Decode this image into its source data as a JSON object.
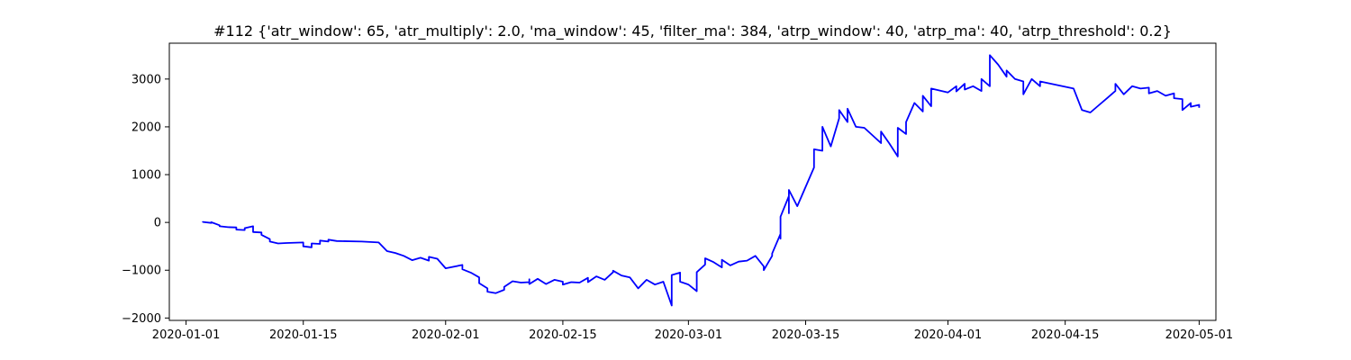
{
  "chart_data": {
    "type": "line",
    "title": "#112 {'atr_window': 65, 'atr_multiply': 2.0, 'ma_window': 45, 'filter_ma': 384, 'atrp_window': 40, 'atrp_ma': 40, 'atrp_threshold': 0.2}",
    "xlabel": "",
    "ylabel": "",
    "xlim": [
      "2019-12-30",
      "2020-05-03"
    ],
    "ylim": [
      -2050,
      3750
    ],
    "grid": false,
    "x_ticks": [
      "2020-01-01",
      "2020-01-15",
      "2020-02-01",
      "2020-02-15",
      "2020-03-01",
      "2020-03-15",
      "2020-04-01",
      "2020-04-15",
      "2020-05-01"
    ],
    "y_ticks": [
      -2000,
      -1000,
      0,
      1000,
      2000,
      3000
    ],
    "series": [
      {
        "color": "#0000ff",
        "points": [
          [
            "2020-01-03",
            0
          ],
          [
            "2020-01-03",
            10
          ],
          [
            "2020-01-04",
            -10
          ],
          [
            "2020-01-04",
            5
          ],
          [
            "2020-01-05",
            -60
          ],
          [
            "2020-01-05",
            -80
          ],
          [
            "2020-01-06",
            -100
          ],
          [
            "2020-01-07",
            -105
          ],
          [
            "2020-01-07",
            -150
          ],
          [
            "2020-01-08",
            -160
          ],
          [
            "2020-01-08",
            -120
          ],
          [
            "2020-01-09",
            -80
          ],
          [
            "2020-01-09",
            -200
          ],
          [
            "2020-01-10",
            -210
          ],
          [
            "2020-01-10",
            -260
          ],
          [
            "2020-01-11",
            -350
          ],
          [
            "2020-01-11",
            -400
          ],
          [
            "2020-01-12",
            -440
          ],
          [
            "2020-01-13",
            -430
          ],
          [
            "2020-01-15",
            -420
          ],
          [
            "2020-01-15",
            -500
          ],
          [
            "2020-01-16",
            -520
          ],
          [
            "2020-01-16",
            -440
          ],
          [
            "2020-01-17",
            -450
          ],
          [
            "2020-01-17",
            -380
          ],
          [
            "2020-01-18",
            -400
          ],
          [
            "2020-01-18",
            -360
          ],
          [
            "2020-01-19",
            -390
          ],
          [
            "2020-01-22",
            -400
          ],
          [
            "2020-01-24",
            -420
          ],
          [
            "2020-01-25",
            -600
          ],
          [
            "2020-01-26",
            -640
          ],
          [
            "2020-01-27",
            -700
          ],
          [
            "2020-01-28",
            -790
          ],
          [
            "2020-01-29",
            -740
          ],
          [
            "2020-01-30",
            -800
          ],
          [
            "2020-01-30",
            -720
          ],
          [
            "2020-01-31",
            -760
          ],
          [
            "2020-02-01",
            -960
          ],
          [
            "2020-02-03",
            -890
          ],
          [
            "2020-02-03",
            -980
          ],
          [
            "2020-02-04",
            -1050
          ],
          [
            "2020-02-05",
            -1150
          ],
          [
            "2020-02-05",
            -1270
          ],
          [
            "2020-02-06",
            -1380
          ],
          [
            "2020-02-06",
            -1450
          ],
          [
            "2020-02-07",
            -1480
          ],
          [
            "2020-02-08",
            -1410
          ],
          [
            "2020-02-08",
            -1350
          ],
          [
            "2020-02-09",
            -1230
          ],
          [
            "2020-02-10",
            -1260
          ],
          [
            "2020-02-11",
            -1250
          ],
          [
            "2020-02-11",
            -1190
          ],
          [
            "2020-02-11",
            -1290
          ],
          [
            "2020-02-12",
            -1180
          ],
          [
            "2020-02-13",
            -1290
          ],
          [
            "2020-02-14",
            -1200
          ],
          [
            "2020-02-15",
            -1240
          ],
          [
            "2020-02-15",
            -1300
          ],
          [
            "2020-02-16",
            -1250
          ],
          [
            "2020-02-17",
            -1260
          ],
          [
            "2020-02-18",
            -1160
          ],
          [
            "2020-02-18",
            -1250
          ],
          [
            "2020-02-19",
            -1130
          ],
          [
            "2020-02-20",
            -1200
          ],
          [
            "2020-02-21",
            -1040
          ],
          [
            "2020-02-21",
            -1010
          ],
          [
            "2020-02-22",
            -1110
          ],
          [
            "2020-02-23",
            -1150
          ],
          [
            "2020-02-24",
            -1380
          ],
          [
            "2020-02-25",
            -1200
          ],
          [
            "2020-02-26",
            -1300
          ],
          [
            "2020-02-27",
            -1240
          ],
          [
            "2020-02-28",
            -1740
          ],
          [
            "2020-02-28",
            -1100
          ],
          [
            "2020-02-29",
            -1050
          ],
          [
            "2020-02-29",
            -1240
          ],
          [
            "2020-03-01",
            -1300
          ],
          [
            "2020-03-02",
            -1440
          ],
          [
            "2020-03-02",
            -1040
          ],
          [
            "2020-03-03",
            -880
          ],
          [
            "2020-03-03",
            -750
          ],
          [
            "2020-03-04",
            -830
          ],
          [
            "2020-03-05",
            -940
          ],
          [
            "2020-03-05",
            -780
          ],
          [
            "2020-03-06",
            -900
          ],
          [
            "2020-03-07",
            -820
          ],
          [
            "2020-03-08",
            -800
          ],
          [
            "2020-03-09",
            -700
          ],
          [
            "2020-03-10",
            -920
          ],
          [
            "2020-03-10",
            -1000
          ],
          [
            "2020-03-11",
            -700
          ],
          [
            "2020-03-11",
            -650
          ],
          [
            "2020-03-12",
            -240
          ],
          [
            "2020-03-12",
            -340
          ],
          [
            "2020-03-12",
            120
          ],
          [
            "2020-03-13",
            550
          ],
          [
            "2020-03-13",
            190
          ],
          [
            "2020-03-13",
            680
          ],
          [
            "2020-03-14",
            340
          ],
          [
            "2020-03-16",
            1150
          ],
          [
            "2020-03-16",
            1530
          ],
          [
            "2020-03-17",
            1500
          ],
          [
            "2020-03-17",
            2000
          ],
          [
            "2020-03-18",
            1590
          ],
          [
            "2020-03-19",
            2180
          ],
          [
            "2020-03-19",
            2350
          ],
          [
            "2020-03-20",
            2100
          ],
          [
            "2020-03-20",
            2380
          ],
          [
            "2020-03-21",
            2000
          ],
          [
            "2020-03-22",
            1980
          ],
          [
            "2020-03-24",
            1660
          ],
          [
            "2020-03-24",
            1900
          ],
          [
            "2020-03-25",
            1650
          ],
          [
            "2020-03-26",
            1380
          ],
          [
            "2020-03-26",
            1980
          ],
          [
            "2020-03-27",
            1850
          ],
          [
            "2020-03-27",
            2100
          ],
          [
            "2020-03-28",
            2500
          ],
          [
            "2020-03-29",
            2320
          ],
          [
            "2020-03-29",
            2650
          ],
          [
            "2020-03-30",
            2430
          ],
          [
            "2020-03-30",
            2800
          ],
          [
            "2020-04-01",
            2720
          ],
          [
            "2020-04-02",
            2850
          ],
          [
            "2020-04-02",
            2740
          ],
          [
            "2020-04-03",
            2900
          ],
          [
            "2020-04-03",
            2780
          ],
          [
            "2020-04-04",
            2850
          ],
          [
            "2020-04-05",
            2750
          ],
          [
            "2020-04-05",
            3000
          ],
          [
            "2020-04-06",
            2850
          ],
          [
            "2020-04-06",
            3150
          ],
          [
            "2020-04-06",
            3500
          ],
          [
            "2020-04-07",
            3300
          ],
          [
            "2020-04-08",
            3050
          ],
          [
            "2020-04-08",
            3180
          ],
          [
            "2020-04-09",
            3000
          ],
          [
            "2020-04-10",
            2950
          ],
          [
            "2020-04-10",
            2680
          ],
          [
            "2020-04-11",
            3000
          ],
          [
            "2020-04-12",
            2850
          ],
          [
            "2020-04-12",
            2950
          ],
          [
            "2020-04-16",
            2800
          ],
          [
            "2020-04-17",
            2350
          ],
          [
            "2020-04-18",
            2300
          ],
          [
            "2020-04-19",
            2450
          ],
          [
            "2020-04-20",
            2600
          ],
          [
            "2020-04-21",
            2750
          ],
          [
            "2020-04-21",
            2900
          ],
          [
            "2020-04-22",
            2680
          ],
          [
            "2020-04-23",
            2850
          ],
          [
            "2020-04-24",
            2800
          ],
          [
            "2020-04-25",
            2820
          ],
          [
            "2020-04-25",
            2700
          ],
          [
            "2020-04-26",
            2750
          ],
          [
            "2020-04-27",
            2650
          ],
          [
            "2020-04-28",
            2700
          ],
          [
            "2020-04-28",
            2600
          ],
          [
            "2020-04-29",
            2580
          ],
          [
            "2020-04-29",
            2350
          ],
          [
            "2020-04-30",
            2500
          ],
          [
            "2020-04-30",
            2420
          ],
          [
            "2020-05-01",
            2460
          ],
          [
            "2020-05-01",
            2400
          ]
        ]
      }
    ]
  }
}
